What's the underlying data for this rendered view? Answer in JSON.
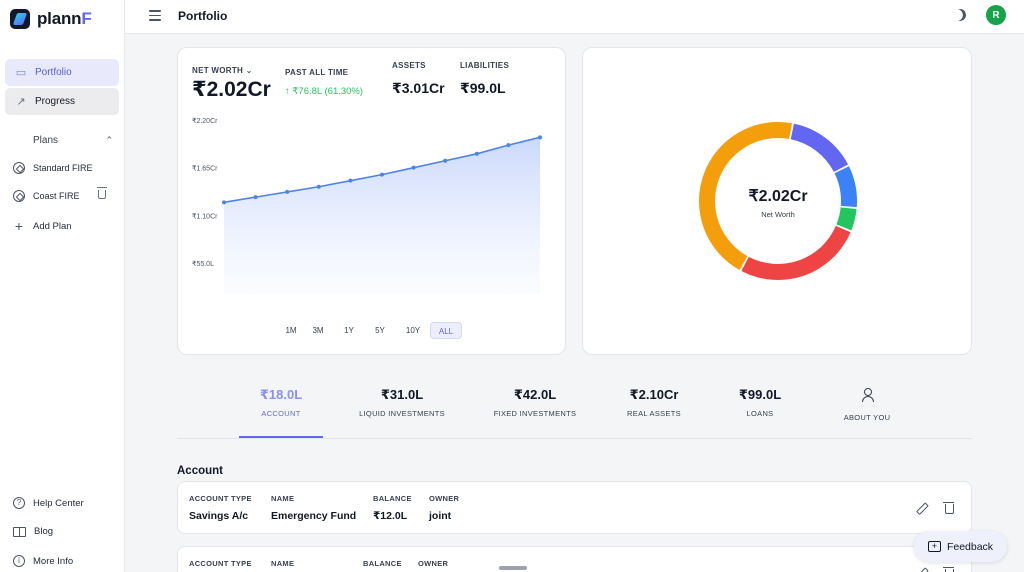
{
  "app": {
    "logo_text": "plann",
    "logo_accent": "F",
    "page_title": "Portfolio",
    "avatar_initial": "R"
  },
  "sidebar": {
    "nav": [
      {
        "label": "Portfolio",
        "icon": "portfolio-icon",
        "active": true
      },
      {
        "label": "Progress",
        "icon": "trend-icon",
        "active": false
      }
    ],
    "plans_label": "Plans",
    "plans": [
      {
        "label": "Standard FIRE",
        "icon": "compass-icon"
      },
      {
        "label": "Coast FIRE",
        "icon": "compass-icon"
      }
    ],
    "add_plan_label": "Add Plan",
    "bottom": [
      {
        "label": "Help Center",
        "icon": "help-icon"
      },
      {
        "label": "Blog",
        "icon": "book-icon"
      },
      {
        "label": "More Info",
        "icon": "info-icon"
      }
    ]
  },
  "summary": {
    "net_worth_label": "NET WORTH",
    "net_worth_value": "₹2.02Cr",
    "past_all_time_label": "PAST ALL TIME",
    "past_all_time_value": "↑ ₹76.8L (61.30%)",
    "assets_label": "ASSETS",
    "assets_value": "₹3.01Cr",
    "liabilities_label": "LIABILITIES",
    "liabilities_value": "₹99.0L"
  },
  "ranges": [
    "1M",
    "3M",
    "1Y",
    "5Y",
    "10Y",
    "ALL"
  ],
  "active_range": "ALL",
  "chart_data": {
    "type": "area",
    "yticks": [
      "₹2.20Cr",
      "₹1.65Cr",
      "₹1.10Cr",
      "₹55.0L"
    ],
    "ytick_values": [
      220,
      165,
      110,
      55
    ],
    "values": [
      125,
      131,
      137,
      143,
      150,
      157,
      165,
      173,
      181,
      191,
      200
    ],
    "ylim": [
      0,
      220
    ],
    "color": "#4f83e6",
    "grid": false
  },
  "donut": {
    "center_value": "₹2.02Cr",
    "center_label": "Net Worth",
    "slices": [
      {
        "value": 18,
        "color": "#6366f1"
      },
      {
        "value": 11,
        "color": "#3b82f6"
      },
      {
        "value": 6,
        "color": "#22c55e"
      },
      {
        "value": 33,
        "color": "#ef4444"
      },
      {
        "value": 56,
        "color": "#f59e0b"
      }
    ]
  },
  "tabs": [
    {
      "value": "₹18.0L",
      "label": "ACCOUNT",
      "active": true
    },
    {
      "value": "₹31.0L",
      "label": "LIQUID INVESTMENTS",
      "active": false
    },
    {
      "value": "₹42.0L",
      "label": "FIXED INVESTMENTS",
      "active": false
    },
    {
      "value": "₹2.10Cr",
      "label": "REAL ASSETS",
      "active": false
    },
    {
      "value": "₹99.0L",
      "label": "LOANS",
      "active": false
    },
    {
      "value": "",
      "label": "ABOUT YOU",
      "active": false
    }
  ],
  "section_title": "Account",
  "accounts": [
    {
      "type_label": "ACCOUNT TYPE",
      "type": "Savings A/c",
      "name_label": "NAME",
      "name": "Emergency Fund",
      "balance_label": "BALANCE",
      "balance": "₹12.0L",
      "owner_label": "OWNER",
      "owner": "joint"
    },
    {
      "type_label": "ACCOUNT TYPE",
      "type": "",
      "name_label": "NAME",
      "name": "",
      "balance_label": "BALANCE",
      "balance": "",
      "owner_label": "OWNER",
      "owner": ""
    }
  ],
  "feedback_label": "Feedback"
}
